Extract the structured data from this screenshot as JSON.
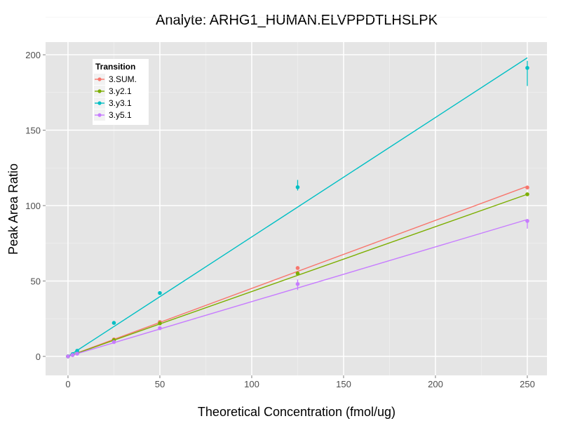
{
  "chart_data": {
    "type": "line",
    "title": "Analyte: ARHG1_HUMAN.ELVPPDTLHSLPK",
    "xlabel": "Theoretical Concentration (fmol/ug)",
    "ylabel": "Peak Area Ratio",
    "xlim": [
      -12.2,
      260.7
    ],
    "ylim": [
      -12.6,
      208.4
    ],
    "x_ticks": [
      0,
      50,
      100,
      150,
      200,
      250
    ],
    "x_tick_labels": [
      "0",
      "50",
      "100",
      "150",
      "200",
      "250"
    ],
    "y_ticks": [
      0,
      50,
      100,
      150,
      200
    ],
    "y_tick_labels": [
      "0",
      "50",
      "100",
      "150",
      "200"
    ],
    "grid": true,
    "legend": {
      "title": "Transition",
      "placement": "top-left"
    },
    "series": [
      {
        "name": "3.SUM.",
        "color": "#F8766D",
        "x": [
          0,
          2.5,
          5,
          25,
          50,
          125,
          250
        ],
        "y": [
          0,
          1.0,
          2.0,
          11.2,
          22.8,
          58.6,
          112.0
        ],
        "fit_slope": 0.451
      },
      {
        "name": "3.y2.1",
        "color": "#7CAE00",
        "x": [
          0,
          2.5,
          5,
          25,
          50,
          125,
          250
        ],
        "y": [
          0,
          1.0,
          2.0,
          10.8,
          21.9,
          55.0,
          107.5
        ],
        "fit_slope": 0.43
      },
      {
        "name": "3.y3.1",
        "color": "#00BFC4",
        "x": [
          0,
          2.5,
          5,
          25,
          50,
          125,
          250
        ],
        "y": [
          0,
          1.5,
          3.7,
          22.2,
          42.0,
          112.2,
          191.3
        ],
        "err_low": [
          null,
          null,
          null,
          null,
          null,
          110.0,
          179.3
        ],
        "err_high": [
          null,
          null,
          null,
          null,
          null,
          117.0,
          196.0
        ],
        "fit_slope": 0.792
      },
      {
        "name": "3.y5.1",
        "color": "#C77CFF",
        "x": [
          0,
          2.5,
          5,
          25,
          50,
          125,
          250
        ],
        "y": [
          0,
          0.9,
          1.8,
          9.5,
          18.7,
          48.0,
          89.8
        ],
        "err_low": [
          null,
          null,
          null,
          null,
          null,
          44.0,
          84.7
        ],
        "err_high": [
          null,
          null,
          null,
          null,
          null,
          51.0,
          91.0
        ],
        "fit_slope": 0.363
      }
    ]
  }
}
